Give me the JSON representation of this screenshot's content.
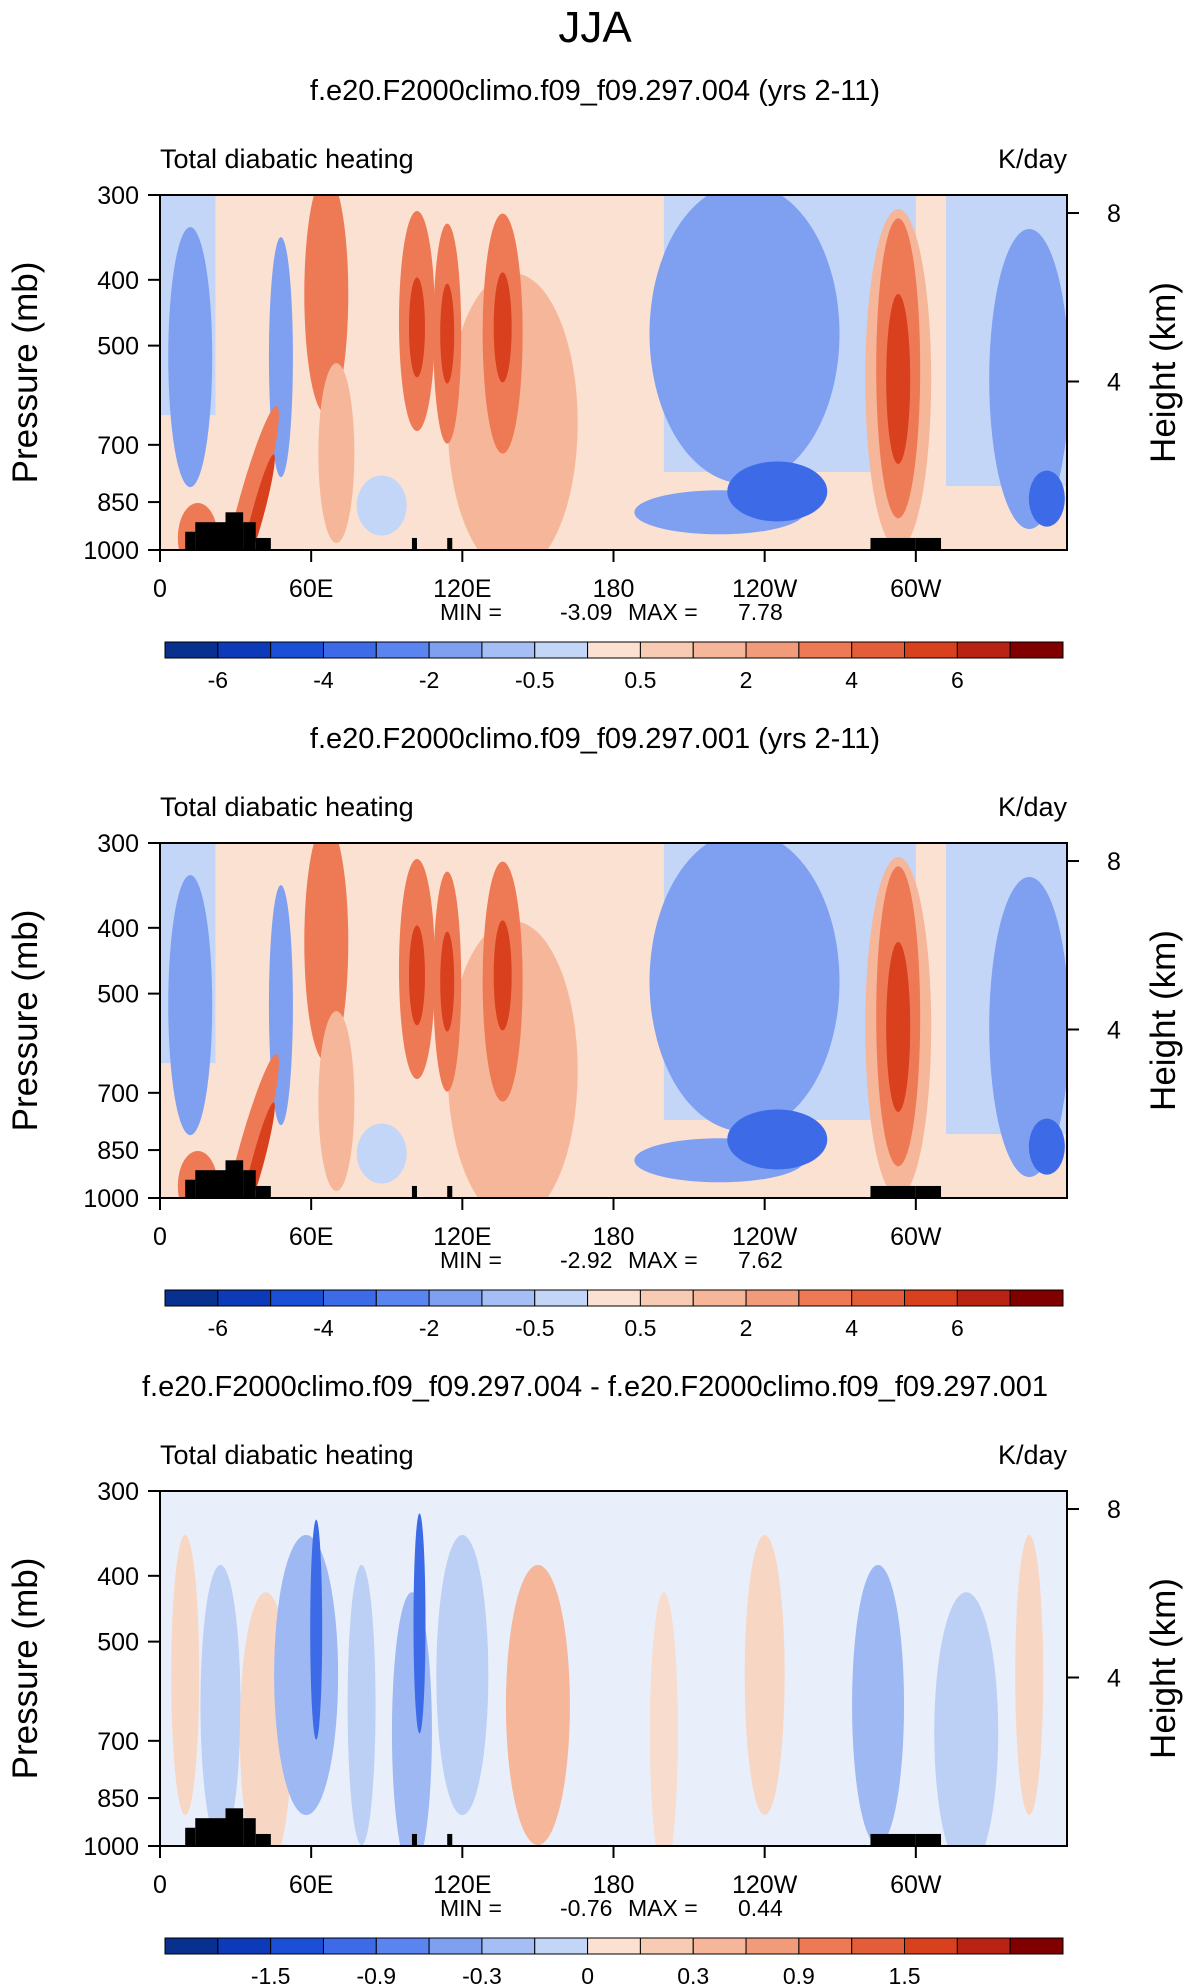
{
  "season": "JJA",
  "colors": {
    "bluest": "#08308e",
    "blue": "#3d6be8",
    "midblue": "#7fa0f0",
    "lightblue": "#c3d6f8",
    "cream": "#fbe1d1",
    "lightred": "#f6b69a",
    "red": "#ee7a55",
    "darkred": "#d8401e",
    "reddest": "#800000",
    "topography": "#000000"
  },
  "chart_data": [
    {
      "type": "heatmap",
      "title": "f.e20.F2000climo.f09_f09.297.004 (yrs 2-11)",
      "left_label": "Total diabatic heating",
      "right_label": "K/day",
      "ylabel": "Pressure (mb)",
      "y2label": "Height (km)",
      "x_ticks": [
        "0",
        "60E",
        "120E",
        "180",
        "120W",
        "60W"
      ],
      "x_tick_values": [
        0,
        60,
        120,
        180,
        240,
        300
      ],
      "xlim": [
        0,
        360
      ],
      "y_ticks": [
        "300",
        "400",
        "500",
        "700",
        "850",
        "1000"
      ],
      "y_tick_values": [
        300,
        400,
        500,
        700,
        850,
        1000
      ],
      "ylim": [
        1000,
        300
      ],
      "y2_ticks": [
        "8",
        "4"
      ],
      "y2_tick_values": [
        8,
        4
      ],
      "min_label": "MIN =",
      "min": "-3.09",
      "max_label": "MAX =",
      "max": "7.78",
      "colorbar_labels": [
        "-6",
        "-4",
        "-2",
        "-0.5",
        "0.5",
        "2",
        "4",
        "6"
      ],
      "colorbar_colors": [
        "#08308e",
        "#0d3ab9",
        "#1a4fd6",
        "#3d6be8",
        "#5a85f0",
        "#7fa0f0",
        "#a5bff6",
        "#c3d6f8",
        "#fbe1d1",
        "#f8cbb5",
        "#f6b69a",
        "#f19b7b",
        "#ee7a55",
        "#e35d38",
        "#d8401e",
        "#b82313",
        "#800000"
      ],
      "units": "K/day"
    },
    {
      "type": "heatmap",
      "title": "f.e20.F2000climo.f09_f09.297.001 (yrs 2-11)",
      "left_label": "Total diabatic heating",
      "right_label": "K/day",
      "ylabel": "Pressure (mb)",
      "y2label": "Height (km)",
      "x_ticks": [
        "0",
        "60E",
        "120E",
        "180",
        "120W",
        "60W"
      ],
      "x_tick_values": [
        0,
        60,
        120,
        180,
        240,
        300
      ],
      "xlim": [
        0,
        360
      ],
      "y_ticks": [
        "300",
        "400",
        "500",
        "700",
        "850",
        "1000"
      ],
      "y_tick_values": [
        300,
        400,
        500,
        700,
        850,
        1000
      ],
      "ylim": [
        1000,
        300
      ],
      "y2_ticks": [
        "8",
        "4"
      ],
      "y2_tick_values": [
        8,
        4
      ],
      "min_label": "MIN =",
      "min": "-2.92",
      "max_label": "MAX =",
      "max": "7.62",
      "colorbar_labels": [
        "-6",
        "-4",
        "-2",
        "-0.5",
        "0.5",
        "2",
        "4",
        "6"
      ],
      "colorbar_colors": [
        "#08308e",
        "#0d3ab9",
        "#1a4fd6",
        "#3d6be8",
        "#5a85f0",
        "#7fa0f0",
        "#a5bff6",
        "#c3d6f8",
        "#fbe1d1",
        "#f8cbb5",
        "#f6b69a",
        "#f19b7b",
        "#ee7a55",
        "#e35d38",
        "#d8401e",
        "#b82313",
        "#800000"
      ],
      "units": "K/day"
    },
    {
      "type": "heatmap",
      "title": "f.e20.F2000climo.f09_f09.297.004 - f.e20.F2000climo.f09_f09.297.001",
      "left_label": "Total diabatic heating",
      "right_label": "K/day",
      "ylabel": "Pressure (mb)",
      "y2label": "Height (km)",
      "x_ticks": [
        "0",
        "60E",
        "120E",
        "180",
        "120W",
        "60W"
      ],
      "x_tick_values": [
        0,
        60,
        120,
        180,
        240,
        300
      ],
      "xlim": [
        0,
        360
      ],
      "y_ticks": [
        "300",
        "400",
        "500",
        "700",
        "850",
        "1000"
      ],
      "y_tick_values": [
        300,
        400,
        500,
        700,
        850,
        1000
      ],
      "ylim": [
        1000,
        300
      ],
      "y2_ticks": [
        "8",
        "4"
      ],
      "y2_tick_values": [
        8,
        4
      ],
      "min_label": "MIN =",
      "min": "-0.76",
      "max_label": "MAX =",
      "max": "0.44",
      "colorbar_labels": [
        "-1.5",
        "-0.9",
        "-0.3",
        "0",
        "0.3",
        "0.9",
        "1.5"
      ],
      "colorbar_colors": [
        "#08308e",
        "#0d3ab9",
        "#1a4fd6",
        "#3d6be8",
        "#5a85f0",
        "#7fa0f0",
        "#a5bff6",
        "#c3d6f8",
        "#fbe1d1",
        "#f8cbb5",
        "#f6b69a",
        "#f19b7b",
        "#ee7a55",
        "#e35d38",
        "#d8401e",
        "#b82313",
        "#800000"
      ],
      "units": "K/day"
    }
  ]
}
